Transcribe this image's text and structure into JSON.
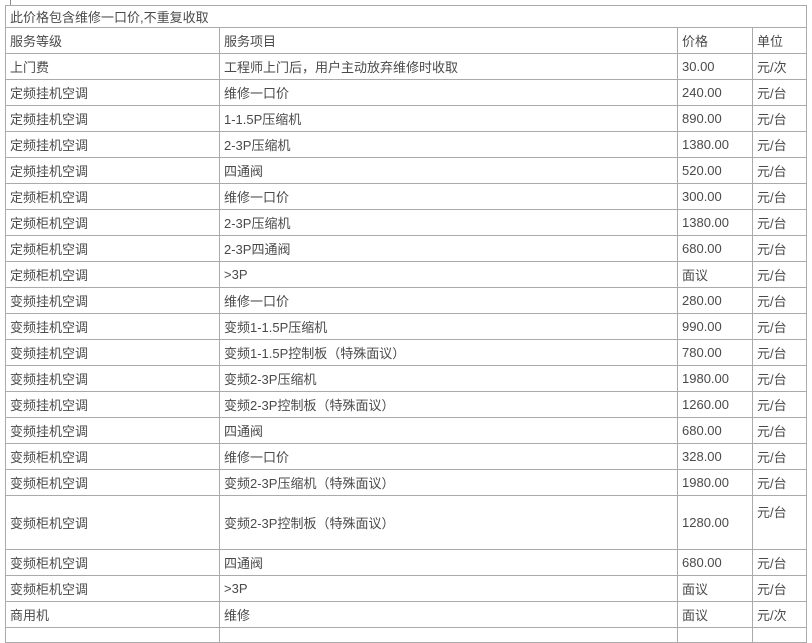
{
  "table": {
    "note": "此价格包含维修一口价,不重复收取",
    "columns": [
      "服务等级",
      "服务项目",
      "价格",
      "单位"
    ],
    "rows": [
      {
        "level": "上门费",
        "item": "工程师上门后，用户主动放弃维修时收取",
        "price": "30.00",
        "unit": "元/次"
      },
      {
        "level": "定频挂机空调",
        "item": "维修一口价",
        "price": "240.00",
        "unit": "元/台"
      },
      {
        "level": "定频挂机空调",
        "item": "1-1.5P压缩机",
        "price": "890.00",
        "unit": "元/台"
      },
      {
        "level": "定频挂机空调",
        "item": "2-3P压缩机",
        "price": "1380.00",
        "unit": "元/台"
      },
      {
        "level": "定频挂机空调",
        "item": "四通阀",
        "price": "520.00",
        "unit": "元/台"
      },
      {
        "level": "定频柜机空调",
        "item": "维修一口价",
        "price": "300.00",
        "unit": "元/台"
      },
      {
        "level": "定频柜机空调",
        "item": "2-3P压缩机",
        "price": "1380.00",
        "unit": "元/台"
      },
      {
        "level": "定频柜机空调",
        "item": "2-3P四通阀",
        "price": "680.00",
        "unit": "元/台"
      },
      {
        "level": "定频柜机空调",
        "item": ">3P",
        "price": "面议",
        "unit": "元/台"
      },
      {
        "level": "变频挂机空调",
        "item": "维修一口价",
        "price": "280.00",
        "unit": "元/台"
      },
      {
        "level": "变频挂机空调",
        "item": "变频1-1.5P压缩机",
        "price": "990.00",
        "unit": "元/台"
      },
      {
        "level": "变频挂机空调",
        "item": "变频1-1.5P控制板（特殊面议）",
        "price": "780.00",
        "unit": "元/台"
      },
      {
        "level": "变频挂机空调",
        "item": "变频2-3P压缩机",
        "price": "1980.00",
        "unit": "元/台"
      },
      {
        "level": "变频挂机空调",
        "item": "变频2-3P控制板（特殊面议）",
        "price": "1260.00",
        "unit": "元/台"
      },
      {
        "level": "变频挂机空调",
        "item": "四通阀",
        "price": "680.00",
        "unit": "元/台"
      },
      {
        "level": "变频柜机空调",
        "item": "维修一口价",
        "price": "328.00",
        "unit": "元/台"
      },
      {
        "level": "变频柜机空调",
        "item": "变频2-3P压缩机（特殊面议）",
        "price": "1980.00",
        "unit": "元/台"
      },
      {
        "level": "变频柜机空调",
        "item": "变频2-3P控制板（特殊面议）",
        "price": "1280.00",
        "unit": "元/台",
        "tall": true
      },
      {
        "level": "变频柜机空调",
        "item": "四通阀",
        "price": "680.00",
        "unit": "元/台"
      },
      {
        "level": "变频柜机空调",
        "item": ">3P",
        "price": "面议",
        "unit": "元/台"
      },
      {
        "level": "商用机",
        "item": "维修",
        "price": "面议",
        "unit": "元/次"
      },
      {
        "level": "",
        "item": "",
        "price": "",
        "unit": "",
        "partial": true
      }
    ]
  }
}
